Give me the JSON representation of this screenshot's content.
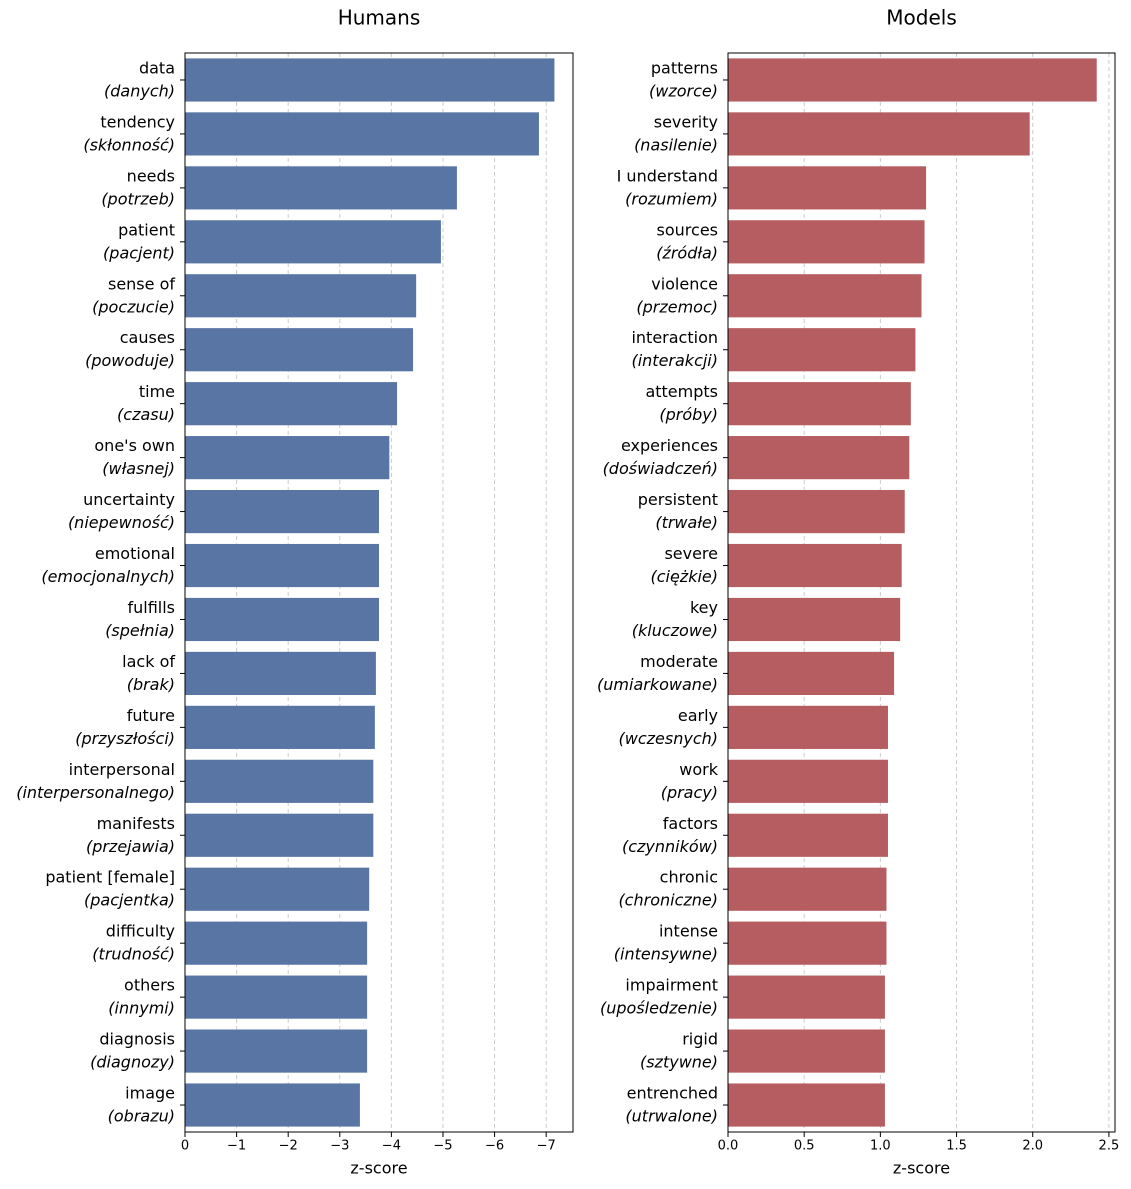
{
  "chart_data": [
    {
      "type": "barh",
      "title": "Humans",
      "xlabel": "z-score",
      "color": "#5975a4",
      "grid": true,
      "categories": [
        "data",
        "tendency",
        "needs",
        "patient",
        "sense of",
        "causes",
        "time",
        "one's own",
        "uncertainty",
        "emotional",
        "fulfills",
        "lack of",
        "future",
        "interpersonal",
        "manifests",
        "patient [female]",
        "difficulty",
        "others",
        "diagnosis",
        "image"
      ],
      "translations": [
        "(danych)",
        "(skłonność)",
        "(potrzeb)",
        "(pacjent)",
        "(poczucie)",
        "(powoduje)",
        "(czasu)",
        "(własnej)",
        "(niepewność)",
        "(emocjonalnych)",
        "(spełnia)",
        "(brak)",
        "(przyszłości)",
        "(interpersonalnego)",
        "(przejawia)",
        "(pacjentka)",
        "(trudność)",
        "(innymi)",
        "(diagnozy)",
        "(obrazu)"
      ],
      "values": [
        -7.16,
        -6.86,
        -5.27,
        -4.96,
        -4.48,
        -4.42,
        -4.11,
        -3.96,
        -3.76,
        -3.76,
        -3.76,
        -3.7,
        -3.68,
        -3.65,
        -3.65,
        -3.57,
        -3.53,
        -3.53,
        -3.53,
        -3.39
      ],
      "xlim": [
        0,
        -7.52
      ],
      "xticks": [
        0,
        {
          "value": -1,
          "label": "−1"
        },
        {
          "value": -2,
          "label": "−2"
        },
        {
          "value": -3,
          "label": "−3"
        },
        {
          "value": -4,
          "label": "−4"
        },
        {
          "value": -5,
          "label": "−5"
        },
        {
          "value": -6,
          "label": "−6"
        },
        {
          "value": -7,
          "label": "−7"
        }
      ]
    },
    {
      "type": "barh",
      "title": "Models",
      "xlabel": "z-score",
      "color": "#b55d60",
      "grid": true,
      "categories": [
        "patterns",
        "severity",
        "I understand",
        "sources",
        "violence",
        "interaction",
        "attempts",
        "experiences",
        "persistent",
        "severe",
        "key",
        "moderate",
        "early",
        "work",
        "factors",
        "chronic",
        "intense",
        "impairment",
        "rigid",
        "entrenched"
      ],
      "translations": [
        "(wzorce)",
        "(nasilenie)",
        "(rozumiem)",
        "(źródła)",
        "(przemoc)",
        "(interakcji)",
        "(próby)",
        "(doświadczeń)",
        "(trwałe)",
        "(ciężkie)",
        "(kluczowe)",
        "(umiarkowane)",
        "(wczesnych)",
        "(pracy)",
        "(czynników)",
        "(chroniczne)",
        "(intensywne)",
        "(upośledzenie)",
        "(sztywne)",
        "(utrwalone)"
      ],
      "values": [
        2.42,
        1.98,
        1.3,
        1.29,
        1.27,
        1.23,
        1.2,
        1.19,
        1.16,
        1.14,
        1.13,
        1.09,
        1.05,
        1.05,
        1.05,
        1.04,
        1.04,
        1.03,
        1.03,
        1.03
      ],
      "xlim": [
        0,
        2.54
      ],
      "xticks": [
        {
          "value": 0,
          "label": "0.0"
        },
        0.5,
        {
          "value": 1,
          "label": "1.0"
        },
        1.5,
        {
          "value": 2,
          "label": "2.0"
        },
        2.5
      ]
    }
  ]
}
